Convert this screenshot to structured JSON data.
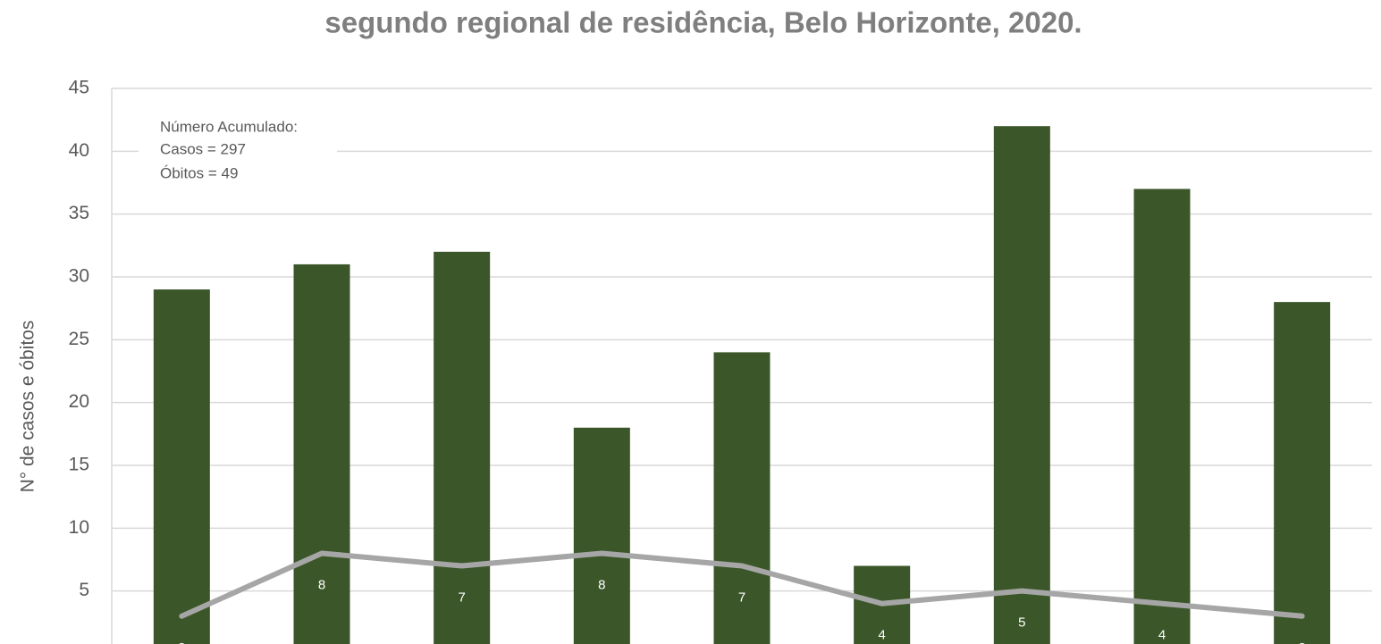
{
  "chart_data": {
    "type": "bar_line",
    "title": "segundo regional de residência, Belo Horizonte, 2020.",
    "y_label": "N° de casos e óbitos",
    "annotation": [
      "Número Acumulado:",
      "Casos  =  297",
      "Óbitos =   49"
    ],
    "categories": [
      null,
      null,
      null,
      null,
      null,
      null,
      null,
      null,
      null
    ],
    "series": [
      {
        "type": "bar",
        "color": "#3b5629",
        "values": [
          29,
          31,
          32,
          18,
          24,
          7,
          42,
          37,
          28
        ]
      },
      {
        "type": "line",
        "color": "#a6a6a6",
        "values": [
          3,
          8,
          7,
          8,
          7,
          4,
          5,
          4,
          3
        ],
        "data_labels": true
      }
    ],
    "ylim": [
      0,
      45
    ],
    "yticks": [
      5,
      10,
      15,
      20,
      25,
      30,
      35,
      40,
      45
    ],
    "grid": true
  }
}
